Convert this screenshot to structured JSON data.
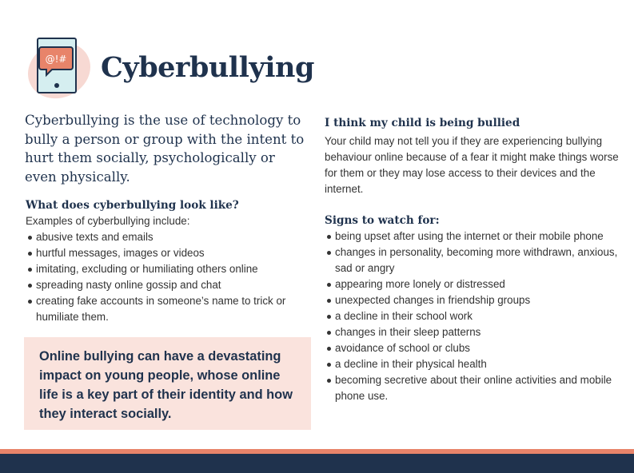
{
  "header": {
    "title": "Cyberbullying",
    "logo_text": "@!#",
    "logo_icon": "tablet-speech-bubble-icon"
  },
  "intro": "Cyberbullying is the use of technology to bully a person or group with the intent to hurt them socially, psychologically or even physically.",
  "left": {
    "heading": "What does cyberbullying look like?",
    "subheading": "Examples of cyberbullying include:",
    "items": [
      "abusive texts and emails",
      "hurtful messages, images or videos",
      "imitating, excluding or humiliating others online",
      "spreading nasty online gossip and chat",
      "creating fake accounts in someone’s name to trick or humiliate them."
    ]
  },
  "callout": "Online bullying can have a devastating impact on young people, whose online life is a key part of their identity and how they interact socially.",
  "right": {
    "heading": "I think my child is being bullied",
    "paragraph": "Your child may not tell you if they are experiencing bullying behaviour online because of a fear it might make things worse for them or they may lose access to their devices and the internet.",
    "signs_heading": "Signs to watch for:",
    "items": [
      "being upset after using the internet or their mobile phone",
      "changes in personality, becoming more withdrawn, anxious, sad or angry",
      "appearing more lonely or distressed",
      "unexpected changes in friendship groups",
      "a decline in their school work",
      "changes in their sleep patterns",
      "avoidance of school or clubs",
      "a decline in their physical health",
      "becoming secretive about their online activities and mobile phone use."
    ]
  },
  "colors": {
    "navy": "#1f324d",
    "orange": "#e8846a",
    "pink": "#fae3dd",
    "tablet": "#d5eef0"
  }
}
